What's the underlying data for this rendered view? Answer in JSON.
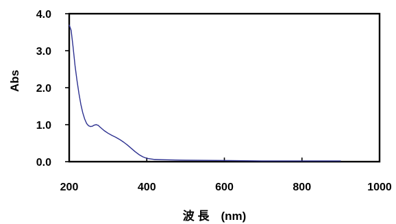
{
  "chart_data": {
    "type": "line",
    "title": "",
    "xlabel": "波 長　(nm)",
    "ylabel": "Abs",
    "xlim": [
      200,
      1000
    ],
    "ylim": [
      0.0,
      4.0
    ],
    "x_ticks": [
      "200",
      "400",
      "600",
      "800",
      "1000"
    ],
    "y_ticks": [
      "0.0",
      "1.0",
      "2.0",
      "3.0",
      "4.0"
    ],
    "grid": false,
    "legend": "none",
    "series": [
      {
        "color": "#2b2f8f",
        "x": [
          200,
          205,
          210,
          215,
          220,
          225,
          230,
          235,
          240,
          245,
          250,
          255,
          260,
          265,
          270,
          275,
          280,
          290,
          300,
          310,
          320,
          330,
          340,
          350,
          360,
          370,
          380,
          390,
          400,
          420,
          450,
          500,
          600,
          700,
          800,
          900
        ],
        "y": [
          3.7,
          3.55,
          3.1,
          2.6,
          2.2,
          1.85,
          1.55,
          1.32,
          1.15,
          1.03,
          0.97,
          0.95,
          0.96,
          0.99,
          1.0,
          0.98,
          0.93,
          0.84,
          0.77,
          0.71,
          0.66,
          0.6,
          0.53,
          0.45,
          0.36,
          0.27,
          0.19,
          0.13,
          0.09,
          0.06,
          0.05,
          0.04,
          0.03,
          0.02,
          0.02,
          0.02
        ]
      }
    ]
  }
}
